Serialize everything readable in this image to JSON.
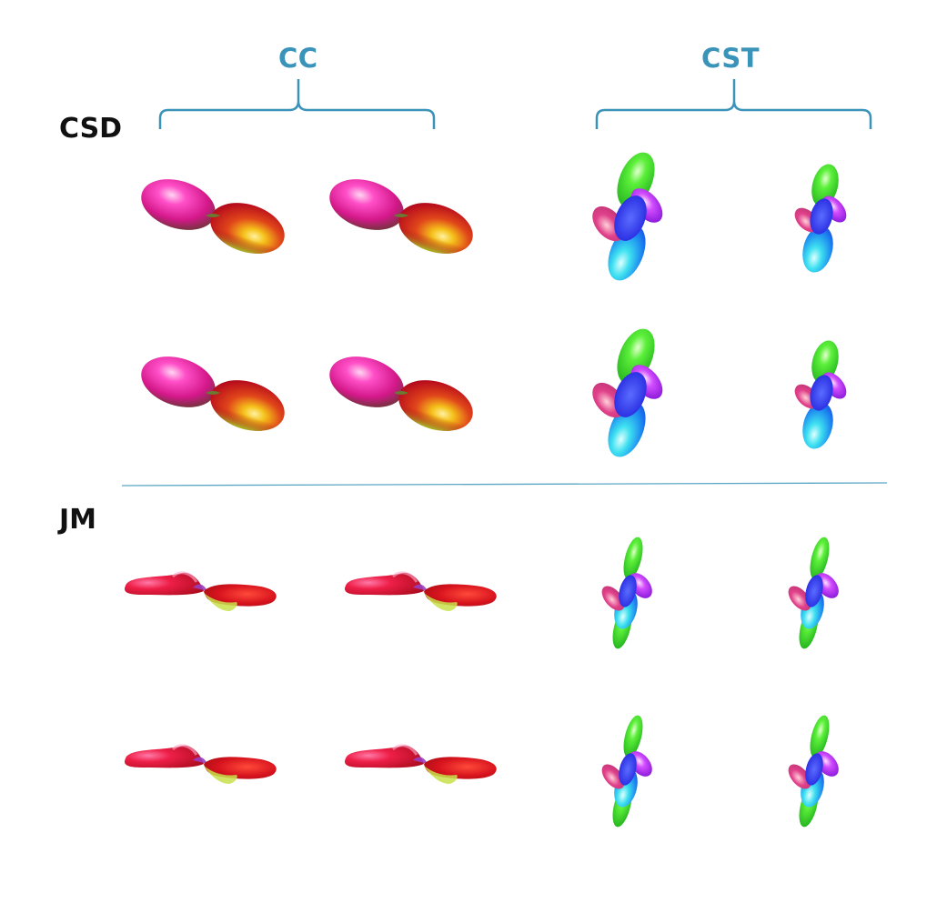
{
  "columns": [
    {
      "label": "CC"
    },
    {
      "label": "CST"
    }
  ],
  "rows": [
    {
      "label": "CSD"
    },
    {
      "label": "JM"
    }
  ],
  "colors": {
    "bracket": "#3a93b8",
    "divider": "#5aa6c4",
    "magenta": "#e0208a",
    "red": "#c8102e",
    "yellow": "#f2d21a",
    "green": "#2ee02e",
    "blue": "#2a3dff",
    "cyan": "#29d6ee",
    "violet": "#a020f0"
  }
}
